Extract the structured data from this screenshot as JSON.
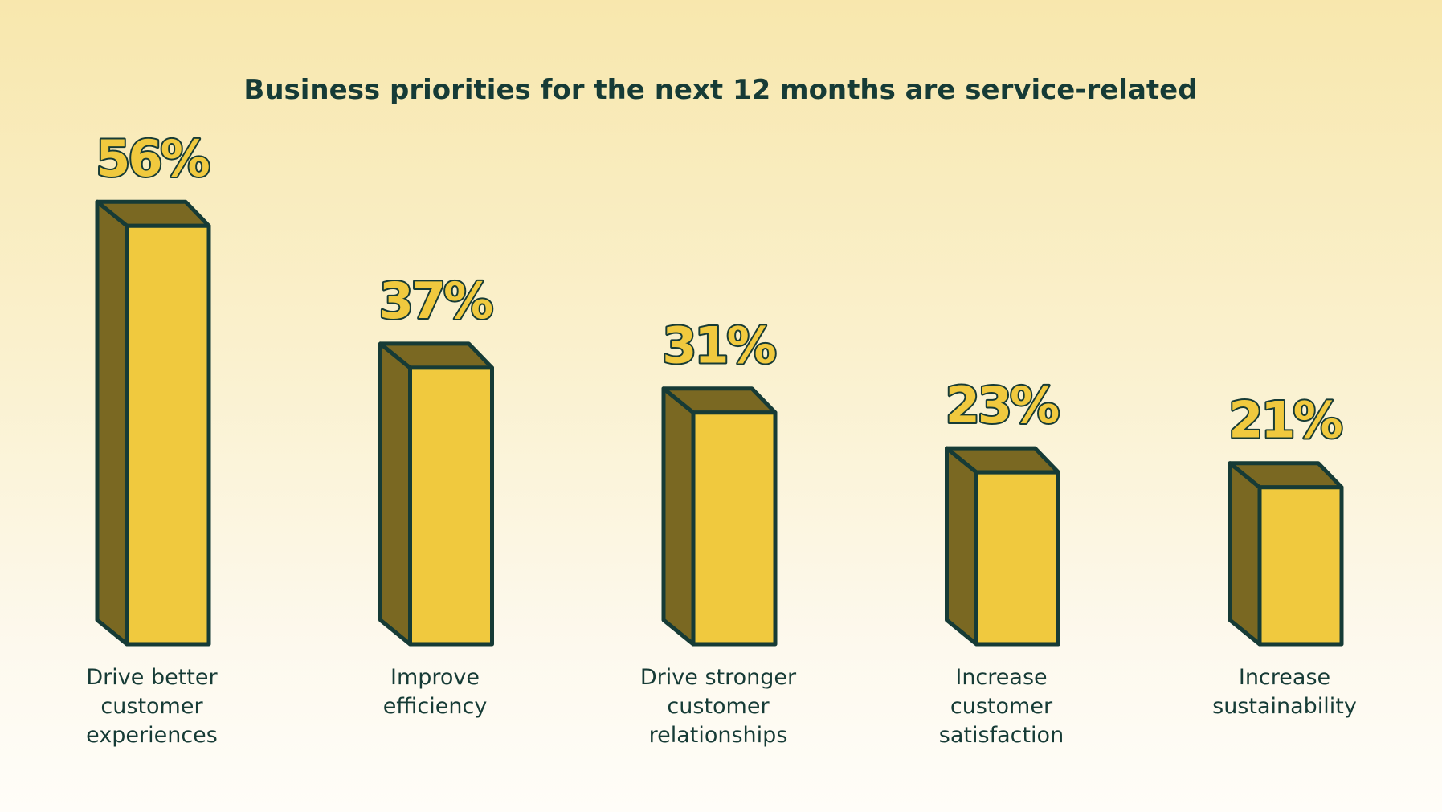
{
  "chart_data": {
    "type": "bar",
    "title": "Business priorities for the next 12 months are service-related",
    "categories": [
      [
        "Drive better",
        "customer",
        "experiences"
      ],
      [
        "Improve",
        "efficiency"
      ],
      [
        "Drive stronger",
        "customer",
        "relationships"
      ],
      [
        "Increase",
        "customer",
        "satisfaction"
      ],
      [
        "Increase",
        "sustainability"
      ]
    ],
    "values": [
      56,
      37,
      31,
      23,
      21
    ],
    "value_labels": [
      "56%",
      "37%",
      "31%",
      "23%",
      "21%"
    ],
    "unit": "%",
    "grid": false,
    "legend": "none"
  },
  "colors": {
    "bar_front": "#f0c93e",
    "bar_side": "#7a6822",
    "outline": "#163b36",
    "text": "#163b36",
    "value_fill": "#f0c93e"
  }
}
